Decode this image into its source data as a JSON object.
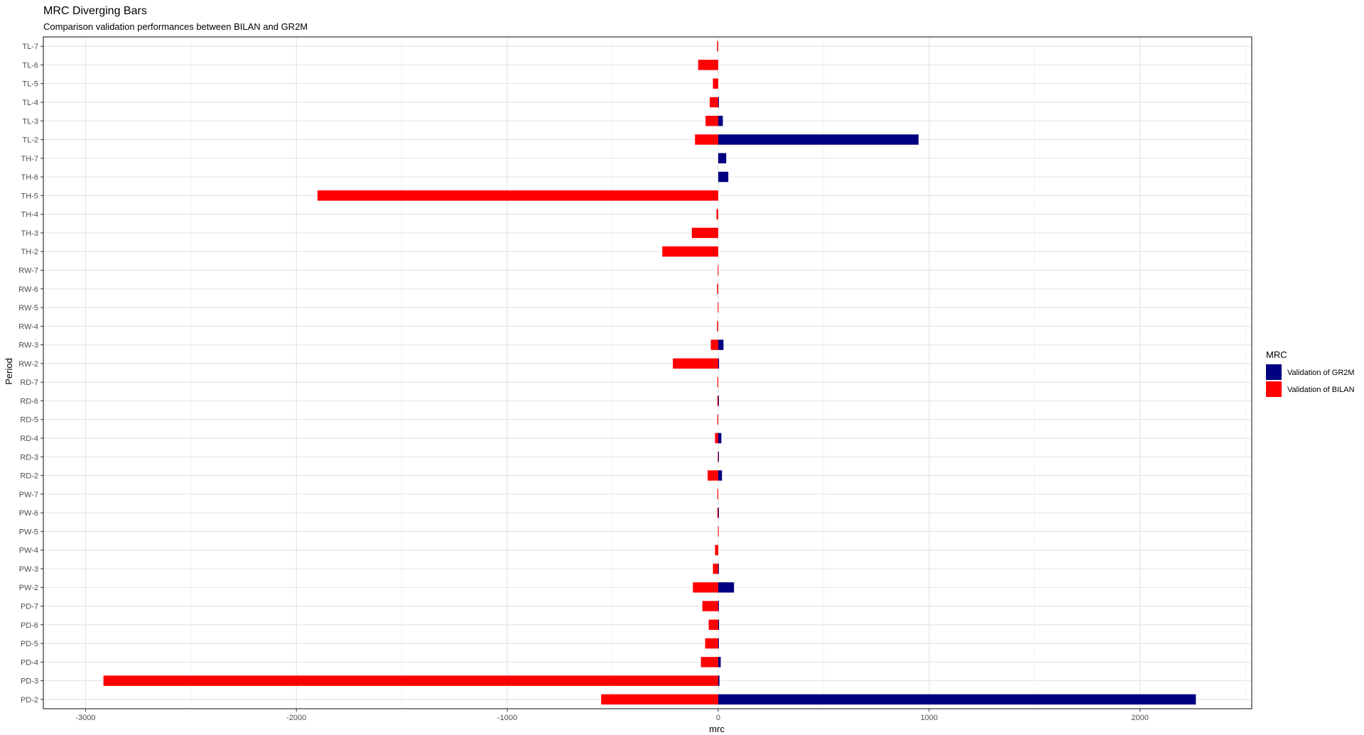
{
  "chart_data": {
    "type": "bar",
    "orientation": "horizontal",
    "title": "MRC Diverging Bars",
    "subtitle": "Comparison validation performances between BILAN and GR2M",
    "xlabel": "mrc",
    "ylabel": "Period",
    "xlim": [
      -3200,
      2530
    ],
    "x_ticks": [
      -3000,
      -2000,
      -1000,
      0,
      1000,
      2000
    ],
    "grid": true,
    "legend": {
      "title": "MRC",
      "position": "right"
    },
    "categories": [
      "TL-7",
      "TL-6",
      "TL-5",
      "TL-4",
      "TL-3",
      "TL-2",
      "TH-7",
      "TH-6",
      "TH-5",
      "TH-4",
      "TH-3",
      "TH-2",
      "RW-7",
      "RW-6",
      "RW-5",
      "RW-4",
      "RW-3",
      "RW-2",
      "RD-7",
      "RD-6",
      "RD-5",
      "RD-4",
      "RD-3",
      "RD-2",
      "PW-7",
      "PW-6",
      "PW-5",
      "PW-4",
      "PW-3",
      "PW-2",
      "PD-7",
      "PD-6",
      "PD-5",
      "PD-4",
      "PD-3",
      "PD-2"
    ],
    "series": [
      {
        "name": "Validation of GR2M",
        "color": "#000080",
        "values": [
          0,
          0,
          0,
          2,
          22,
          950,
          38,
          48,
          0,
          0,
          0,
          0,
          0,
          0,
          0,
          0,
          25,
          4,
          0,
          3,
          0,
          15,
          2,
          18,
          0,
          2,
          0,
          0,
          3,
          75,
          3,
          4,
          3,
          12,
          6,
          2265
        ]
      },
      {
        "name": "Validation of BILAN",
        "color": "#ff0000",
        "values": [
          -5,
          -95,
          -25,
          -40,
          -60,
          -110,
          0,
          0,
          -1900,
          -8,
          -125,
          -265,
          -2,
          -5,
          -2,
          -5,
          -35,
          -215,
          -4,
          -4,
          -4,
          -15,
          -2,
          -50,
          -4,
          -4,
          -1,
          -15,
          -25,
          -120,
          -75,
          -45,
          -62,
          -82,
          -2915,
          -555
        ]
      }
    ]
  }
}
